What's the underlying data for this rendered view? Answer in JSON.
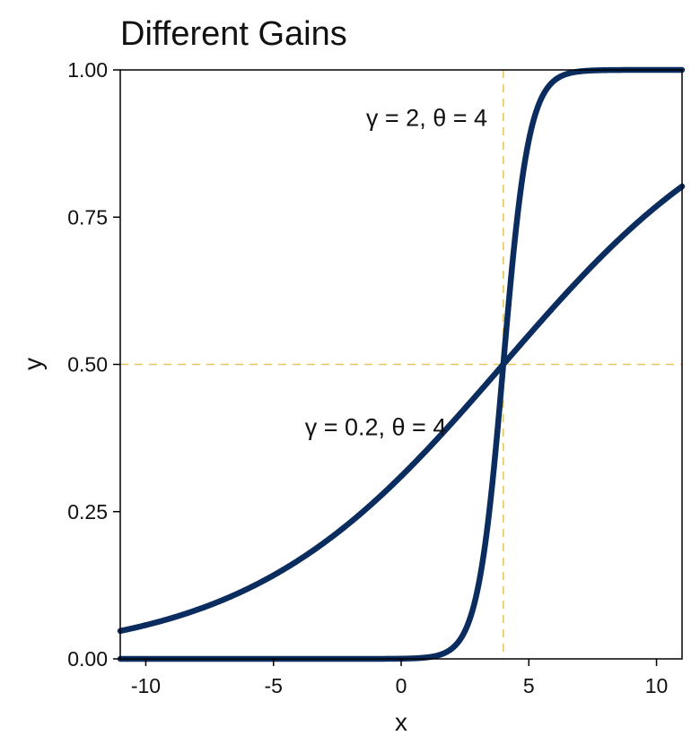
{
  "chart_data": {
    "type": "line",
    "title": "Different Gains",
    "xlabel": "x",
    "ylabel": "y",
    "xlim": [
      -11,
      11
    ],
    "ylim": [
      0,
      1
    ],
    "x_ticks": [
      -10,
      -5,
      0,
      5,
      10
    ],
    "x_tick_labels": [
      "-10",
      "-5",
      "0",
      "5",
      "10"
    ],
    "y_ticks": [
      0,
      0.25,
      0.5,
      0.75,
      1
    ],
    "y_tick_labels": [
      "0.00",
      "0.25",
      "0.50",
      "0.75",
      "1.00"
    ],
    "grid": false,
    "reference_lines": [
      {
        "orientation": "vertical",
        "x": 4,
        "style": "dashed"
      },
      {
        "orientation": "horizontal",
        "y": 0.5,
        "style": "dashed"
      }
    ],
    "series": [
      {
        "function": "logistic",
        "gain": 2,
        "threshold": 4,
        "annotation": "γ = 2, θ = 4",
        "annotation_x": 1,
        "annotation_y": 0.92,
        "x": [
          -11,
          -6,
          -2,
          0,
          1,
          2,
          2.5,
          3,
          3.5,
          4,
          4.5,
          5,
          5.5,
          6,
          7,
          8,
          11
        ],
        "y": [
          0.0,
          0.0,
          0.0,
          0.0003,
          0.0025,
          0.018,
          0.047,
          0.119,
          0.269,
          0.5,
          0.731,
          0.881,
          0.953,
          0.982,
          0.998,
          1.0,
          1.0
        ]
      },
      {
        "function": "logistic",
        "gain": 0.2,
        "threshold": 4,
        "annotation": "γ = 0.2, θ = 4",
        "annotation_x": -1,
        "annotation_y": 0.395,
        "x": [
          -11,
          -10,
          -8,
          -6,
          -4,
          -2,
          0,
          2,
          4,
          6,
          8,
          10,
          11
        ],
        "y": [
          0.047,
          0.057,
          0.083,
          0.119,
          0.168,
          0.231,
          0.31,
          0.401,
          0.5,
          0.599,
          0.69,
          0.769,
          0.802
        ]
      }
    ],
    "colors": {
      "curve": "#0B2C5E",
      "reference_line": "#E3C766",
      "axis": "#000000"
    }
  }
}
